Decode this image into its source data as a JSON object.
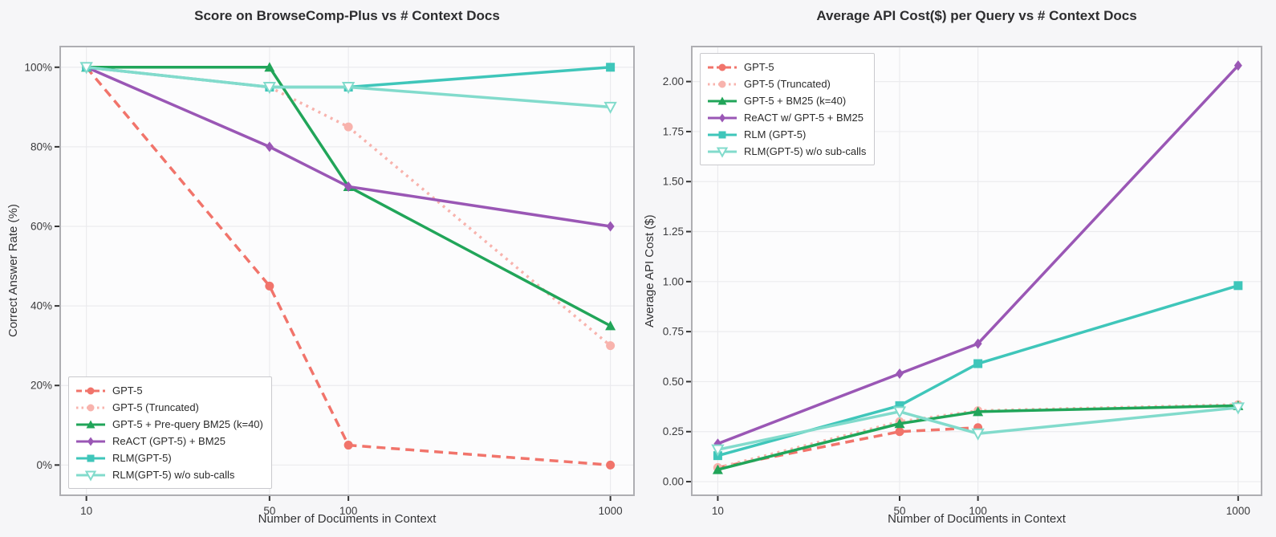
{
  "figure": {
    "background": "#f6f6f8",
    "plot_background": "#fcfcfd",
    "grid_color": "#ebebee",
    "spine_color": "#aeaeb2",
    "tick_color": "#333333",
    "tick_label_color": "#3b3b3d",
    "title_color": "#2d2d2f"
  },
  "chart_data": [
    {
      "type": "line",
      "title": "Score on BrowseComp-Plus vs # Context Docs",
      "xlabel": "Number of Documents in Context",
      "ylabel": "Correct Answer Rate (%)",
      "xscale": "log",
      "x": [
        10,
        50,
        100,
        1000
      ],
      "xtick_labels": [
        "10",
        "50",
        "100",
        "1000"
      ],
      "ytick_values": [
        0,
        20,
        40,
        60,
        80,
        100
      ],
      "ytick_labels": [
        "0%",
        "20%",
        "40%",
        "60%",
        "80%",
        "100%"
      ],
      "ylim": [
        -7.6,
        105.2
      ],
      "xlim_log": [
        0.9,
        3.09
      ],
      "grid": true,
      "legend_position": "lower-left",
      "series": [
        {
          "name": "GPT-5",
          "color": "#f1746b",
          "line": "dashed",
          "marker": "circle",
          "values": [
            100,
            45,
            5,
            0
          ]
        },
        {
          "name": "GPT-5 (Truncated)",
          "color": "#f8b3ad",
          "line": "dotted",
          "marker": "circle",
          "values": [
            100,
            95,
            85,
            30
          ]
        },
        {
          "name": "GPT-5 + Pre-query BM25 (k=40)",
          "color": "#21a559",
          "line": "solid",
          "marker": "triangle-up",
          "values": [
            100,
            100,
            70,
            35
          ]
        },
        {
          "name": "ReACT (GPT-5) + BM25",
          "color": "#9a57b5",
          "line": "solid",
          "marker": "diamond",
          "values": [
            100,
            80,
            70,
            60
          ]
        },
        {
          "name": "RLM(GPT-5)",
          "color": "#3fc6ba",
          "line": "solid",
          "marker": "square",
          "values": [
            100,
            95,
            95,
            100
          ]
        },
        {
          "name": "RLM(GPT-5) w/o sub-calls",
          "color": "#82dbcc",
          "line": "solid",
          "marker": "triangle-down-open",
          "values": [
            100,
            95,
            95,
            90
          ]
        }
      ]
    },
    {
      "type": "line",
      "title": "Average API Cost($) per Query vs # Context Docs",
      "xlabel": "Number of Documents in Context",
      "ylabel": "Average API Cost ($)",
      "xscale": "log",
      "x": [
        10,
        50,
        100,
        1000
      ],
      "xtick_labels": [
        "10",
        "50",
        "100",
        "1000"
      ],
      "ytick_values": [
        0.0,
        0.25,
        0.5,
        0.75,
        1.0,
        1.25,
        1.5,
        1.75,
        2.0
      ],
      "ytick_labels": [
        "0.00",
        "0.25",
        "0.50",
        "0.75",
        "1.00",
        "1.25",
        "1.50",
        "1.75",
        "2.00"
      ],
      "ylim": [
        -0.068,
        2.175
      ],
      "xlim_log": [
        0.9,
        3.09
      ],
      "grid": true,
      "legend_position": "upper-left",
      "series": [
        {
          "name": "GPT-5",
          "color": "#f1746b",
          "line": "dashed",
          "marker": "circle",
          "values": [
            0.07,
            0.25,
            0.27,
            null
          ]
        },
        {
          "name": "GPT-5 (Truncated)",
          "color": "#f8b3ad",
          "line": "dotted",
          "marker": "circle",
          "values": [
            0.07,
            0.3,
            0.355,
            0.385
          ]
        },
        {
          "name": "GPT-5 + BM25 (k=40)",
          "color": "#21a559",
          "line": "solid",
          "marker": "triangle-up",
          "values": [
            0.06,
            0.29,
            0.35,
            0.38
          ]
        },
        {
          "name": "ReACT w/ GPT-5 + BM25",
          "color": "#9a57b5",
          "line": "solid",
          "marker": "diamond",
          "values": [
            0.19,
            0.54,
            0.69,
            2.08
          ]
        },
        {
          "name": "RLM (GPT-5)",
          "color": "#3fc6ba",
          "line": "solid",
          "marker": "square",
          "values": [
            0.13,
            0.38,
            0.59,
            0.98
          ]
        },
        {
          "name": "RLM(GPT-5) w/o sub-calls",
          "color": "#82dbcc",
          "line": "solid",
          "marker": "triangle-down-open",
          "values": [
            0.16,
            0.35,
            0.24,
            0.37
          ]
        }
      ]
    }
  ]
}
